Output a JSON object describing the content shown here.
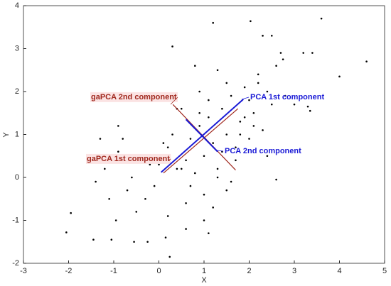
{
  "chart_data": {
    "type": "scatter",
    "xlabel": "X",
    "ylabel": "Y",
    "color": "#000000",
    "xlim": [
      -3,
      5
    ],
    "xticks": [
      -3,
      -2,
      -1,
      0,
      1,
      2,
      3,
      4,
      5
    ],
    "ylim": [
      -2,
      4
    ],
    "yticks": [
      -2,
      -1,
      0,
      1,
      2,
      3,
      4
    ],
    "x": [
      -2.05,
      -1.95,
      -1.45,
      -1.05,
      -0.95,
      -0.55,
      -0.25,
      0.15,
      0.24,
      0.3,
      3.6,
      4.6,
      4.0,
      2.03,
      3.2,
      3.4,
      3.3,
      3.35,
      2.7,
      2.75,
      2.3,
      2.5,
      -1.3,
      -0.8,
      -0.9,
      -0.4,
      -0.9,
      -0.2,
      0.1,
      -1.4,
      -1.2,
      -1.1,
      -0.7,
      -0.6,
      -0.5,
      -0.3,
      -0.1,
      0.0,
      0.2,
      0.4,
      0.5,
      0.6,
      0.7,
      0.8,
      0.9,
      1.0,
      1.1,
      1.2,
      1.3,
      1.4,
      1.5,
      1.6,
      1.7,
      1.8,
      1.9,
      2.0,
      2.1,
      2.2,
      2.3,
      2.4,
      2.5,
      2.6,
      0.3,
      0.5,
      0.7,
      0.9,
      1.1,
      1.3,
      1.5,
      1.7,
      1.9,
      2.1,
      0.2,
      0.6,
      1.0,
      1.4,
      1.8,
      2.2,
      0.8,
      1.2,
      1.6,
      2.0,
      2.4,
      0.4,
      0.9,
      1.3,
      -0.3,
      0.1,
      1.0,
      1.5,
      2.8,
      3.0,
      2.6,
      0.6,
      1.1,
      1.2
    ],
    "values": [
      -1.28,
      -0.83,
      -1.45,
      -1.45,
      -1.0,
      -1.5,
      -1.5,
      -1.4,
      -1.85,
      3.05,
      3.7,
      2.7,
      2.35,
      3.64,
      2.9,
      2.9,
      1.65,
      1.55,
      2.9,
      2.75,
      3.3,
      3.3,
      0.9,
      0.9,
      1.2,
      1.8,
      0.6,
      0.3,
      0.5,
      -0.1,
      0.2,
      -0.5,
      -0.3,
      0.0,
      -0.8,
      0.4,
      -0.2,
      0.3,
      0.7,
      0.2,
      0.2,
      -0.6,
      0.9,
      0.1,
      1.2,
      0.5,
      1.4,
      0.8,
      0.2,
      1.6,
      1.0,
      1.9,
      0.4,
      1.3,
      2.1,
      0.9,
      1.5,
      2.4,
      1.1,
      2.0,
      1.7,
      2.6,
      1.0,
      1.6,
      -0.2,
      2.0,
      1.8,
      0.0,
      2.2,
      0.7,
      1.4,
      1.2,
      -0.9,
      0.4,
      -0.4,
      0.6,
      1.0,
      2.2,
      2.6,
      -0.7,
      -0.1,
      1.8,
      0.5,
      1.6,
      1.5,
      2.5,
      -0.5,
      0.8,
      -1.0,
      -0.3,
      1.9,
      1.7,
      -0.05,
      -1.2,
      -1.3,
      3.6
    ],
    "lines": [
      {
        "name": "gaPCA 2nd component",
        "color": "#a0281e",
        "x": [
          0.31,
          1.7
        ],
        "y": [
          1.7,
          0.17
        ]
      },
      {
        "name": "gaPCA 1st component",
        "color": "#a0281e",
        "x": [
          0.1,
          1.75
        ],
        "y": [
          0.1,
          1.6
        ]
      },
      {
        "name": "PCA 1st component",
        "color": "#1a1ad6",
        "x": [
          0.05,
          1.87
        ],
        "y": [
          0.12,
          1.82
        ]
      },
      {
        "name": "PCA 2nd component",
        "color": "#1a1ad6",
        "x": [
          0.6,
          1.3
        ],
        "y": [
          1.35,
          0.6
        ]
      }
    ]
  }
}
